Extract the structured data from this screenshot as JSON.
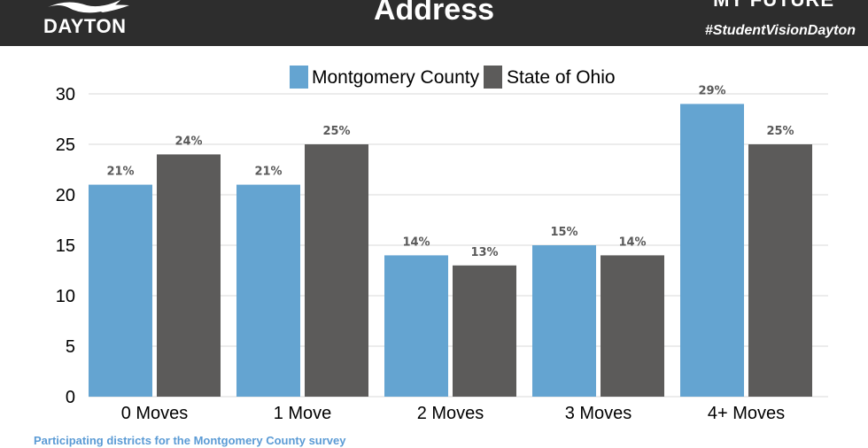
{
  "header": {
    "logo_text": "DAYTON",
    "title": "Address",
    "right_title": "MY FUTURE",
    "hashtag": "#StudentVisionDayton"
  },
  "footer": {
    "text": "Participating districts for the Montgomery County survey"
  },
  "colors": {
    "header_bg": "#2d2d2d",
    "montgomery": "#64a4d1",
    "ohio": "#5c5b5a"
  },
  "chart_data": {
    "type": "bar",
    "categories": [
      "0 Moves",
      "1 Move",
      "2 Moves",
      "3 Moves",
      "4+ Moves"
    ],
    "series": [
      {
        "name": "Montgomery County",
        "values": [
          21,
          21,
          14,
          15,
          29
        ],
        "labels": [
          "21%",
          "21%",
          "14%",
          "15%",
          "29%"
        ],
        "color": "#64a4d1"
      },
      {
        "name": "State of Ohio",
        "values": [
          24,
          25,
          13,
          14,
          25
        ],
        "labels": [
          "24%",
          "25%",
          "13%",
          "14%",
          "25%"
        ],
        "color": "#5c5b5a"
      }
    ],
    "yticks": [
      0,
      5,
      10,
      15,
      20,
      25,
      30
    ],
    "ylim": [
      0,
      30
    ],
    "grid": true,
    "legend": "top-center"
  }
}
